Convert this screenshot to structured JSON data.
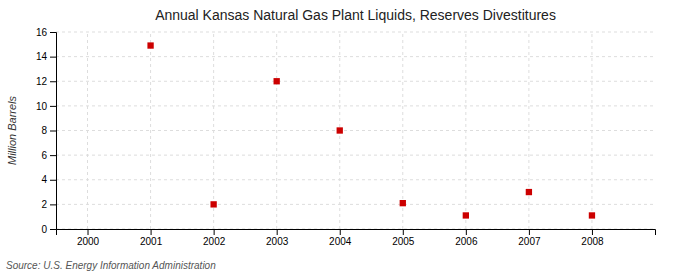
{
  "chart_data": {
    "type": "scatter",
    "title": "Annual Kansas Natural Gas Plant Liquids, Reserves Divestitures",
    "ylabel": "Million Barrels",
    "source": "Source: U.S. Energy Information Administration",
    "x": [
      2001,
      2002,
      2003,
      2004,
      2005,
      2006,
      2007,
      2008
    ],
    "values": [
      14.9,
      2.0,
      12.0,
      8.0,
      2.1,
      1.1,
      3.0,
      1.1
    ],
    "xlim": [
      1999.5,
      2009.0
    ],
    "xticks": [
      2000,
      2001,
      2002,
      2003,
      2004,
      2005,
      2006,
      2007,
      2008
    ],
    "ylim": [
      0,
      16
    ],
    "yticks": [
      0,
      2,
      4,
      6,
      8,
      10,
      12,
      14,
      16
    ],
    "color": "#cc0000",
    "marker": "square",
    "grid": true
  }
}
